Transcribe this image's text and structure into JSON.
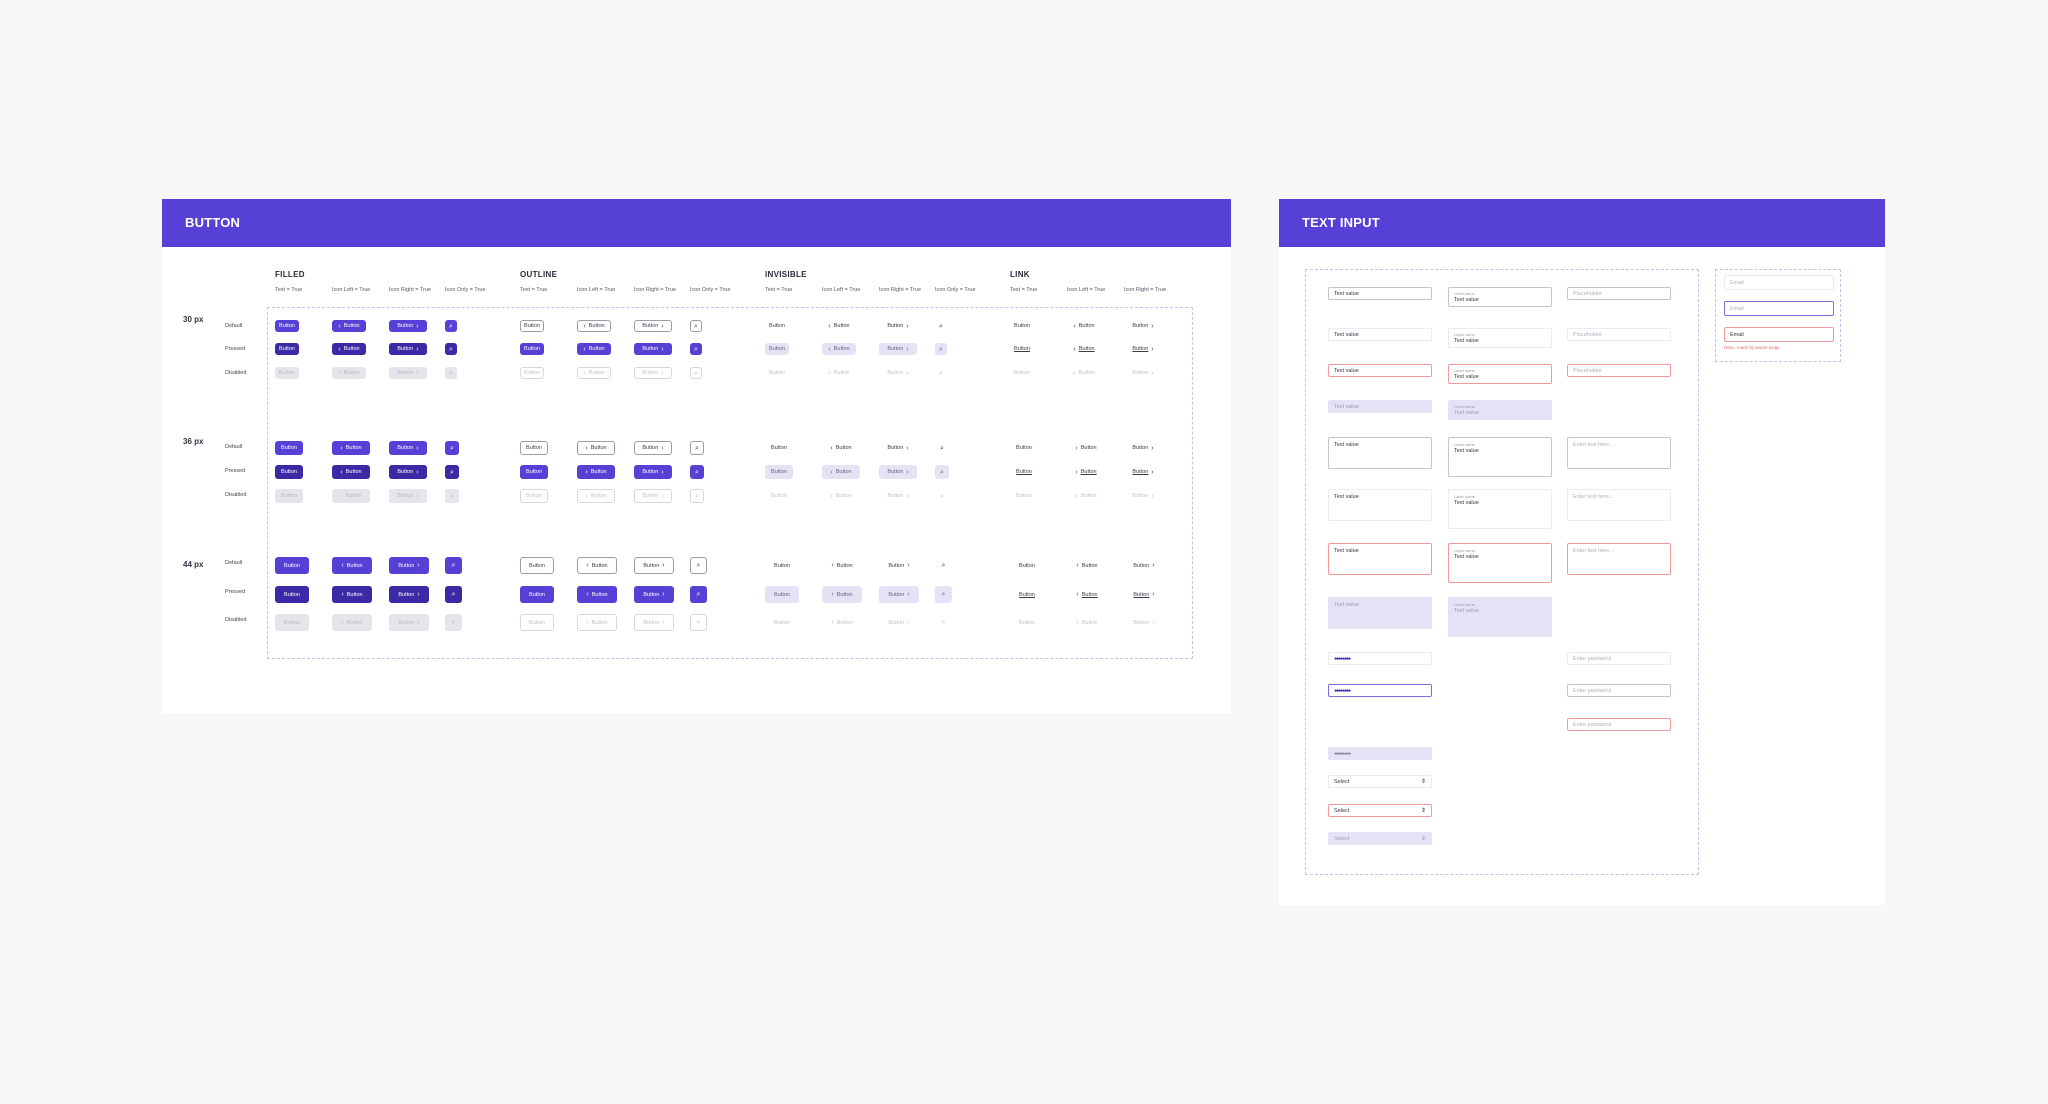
{
  "button_section": {
    "title": "BUTTON",
    "groups": [
      "FILLED",
      "OUTLINE",
      "INVISIBLE",
      "LINK"
    ],
    "column_labels": {
      "filled": [
        "Text = True",
        "Icon Left = True",
        "Icon Right = True",
        "Icon Only = True"
      ],
      "outline": [
        "Text = True",
        "Icon Left = True",
        "Icon Right = True",
        "Icon Only = True"
      ],
      "invisible": [
        "Text = True",
        "Icon Left = True",
        "Icon Right = True",
        "Icon Only = True"
      ],
      "link": [
        "Text = True",
        "Icon Left = True",
        "Icon Right = True"
      ]
    },
    "sizes": [
      "30 px",
      "36 px",
      "44 px"
    ],
    "states": [
      "Default",
      "Pressed",
      "Disabled"
    ],
    "button_label": "Button"
  },
  "text_input_section": {
    "title": "TEXT INPUT",
    "text_value": "Text value",
    "label_name": "Label name",
    "placeholder": "Placeholder",
    "textarea_placeholder": "Enter text here...",
    "password_mask": "●●●●●●●●",
    "password_placeholder": "Enter password",
    "select_label": "Select",
    "email_label": "Email",
    "email_error": "Heex, made by jesper kings"
  },
  "colors": {
    "primary": "#5541d6",
    "pressed": "#3a2aa5",
    "error": "#f19a9a",
    "background": "#f7f7f8"
  }
}
